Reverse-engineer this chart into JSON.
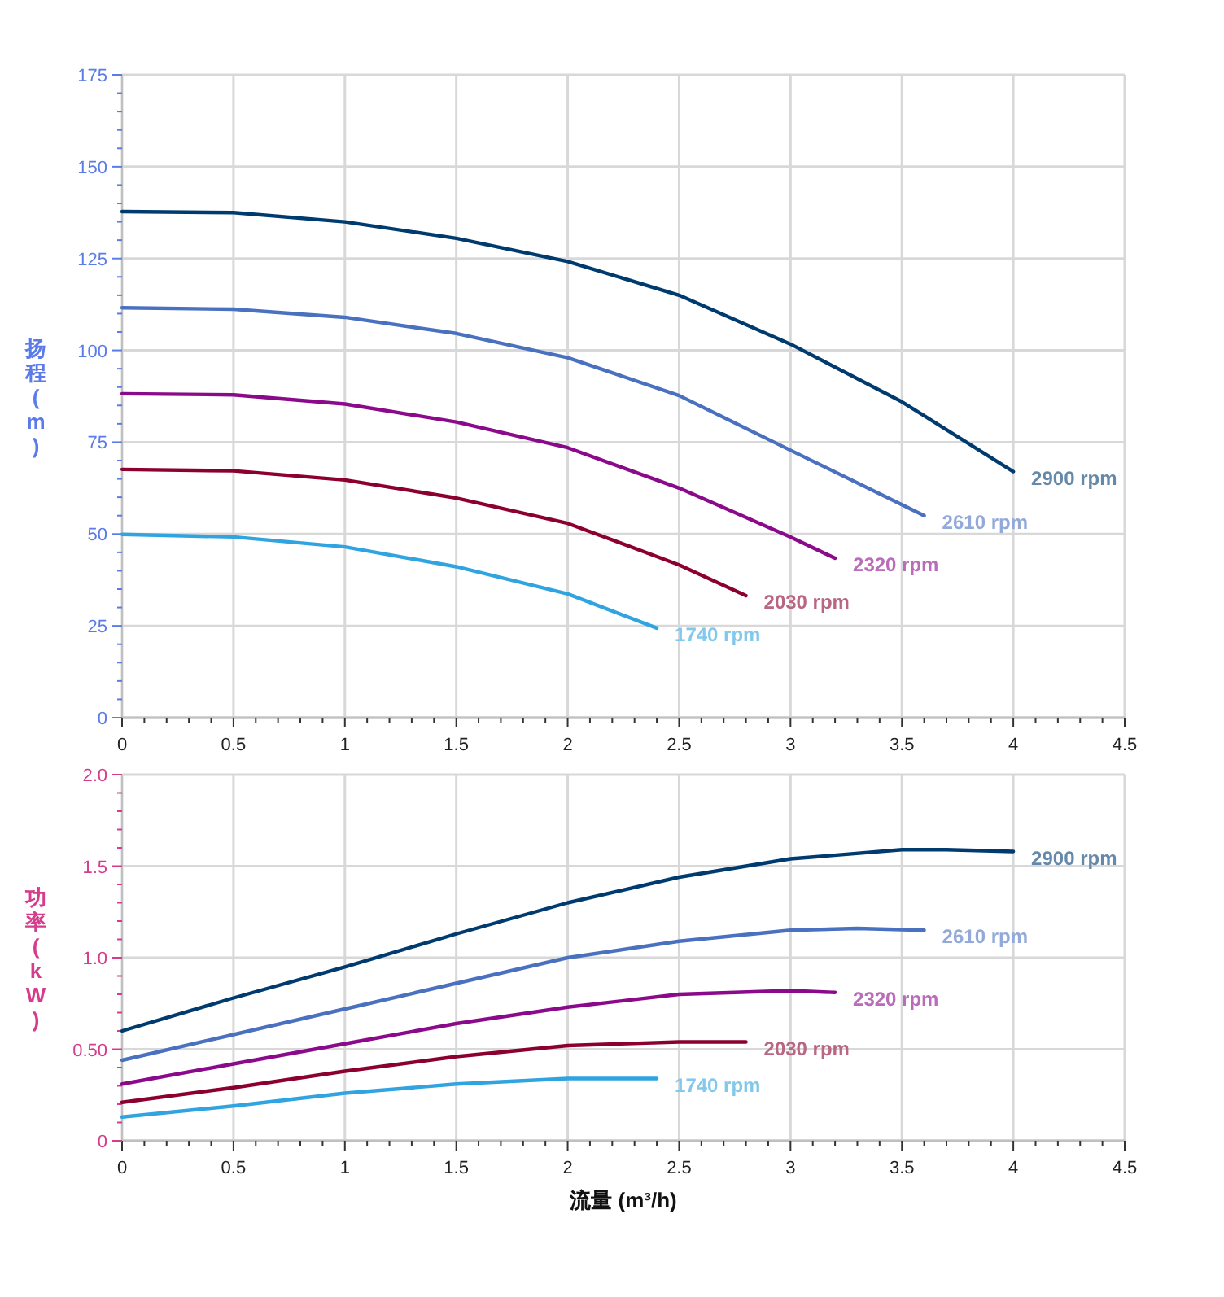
{
  "chart_data": [
    {
      "type": "line",
      "ylabel": "扬程 (m)",
      "xlim": [
        0,
        4.5
      ],
      "xticks": [
        0,
        0.5,
        1,
        1.5,
        2,
        2.5,
        3,
        3.5,
        4,
        4.5
      ],
      "ylim": [
        0,
        175
      ],
      "yticks": [
        0,
        25,
        50,
        75,
        100,
        125,
        150,
        175
      ],
      "grid": true,
      "series": [
        {
          "name": "2900 rpm",
          "color": "#003b6f",
          "x": [
            0,
            0.5,
            1,
            1.5,
            2,
            2.5,
            3,
            3.5,
            4
          ],
          "values": [
            137.8,
            137.5,
            135,
            130.5,
            124.2,
            115,
            101.7,
            86,
            67
          ]
        },
        {
          "name": "2610 rpm",
          "color": "#4a70c0",
          "x": [
            0,
            0.5,
            1,
            1.5,
            2,
            2.5,
            3,
            3.5,
            3.6
          ],
          "values": [
            111.6,
            111.2,
            109,
            104.6,
            98,
            87.7,
            72.8,
            58,
            55
          ]
        },
        {
          "name": "2320 rpm",
          "color": "#8b0a8b",
          "x": [
            0,
            0.5,
            1,
            1.5,
            2,
            2.5,
            3,
            3.2
          ],
          "values": [
            88.2,
            87.9,
            85.4,
            80.5,
            73.5,
            62.5,
            49.2,
            43.4
          ]
        },
        {
          "name": "2030 rpm",
          "color": "#8b0030",
          "x": [
            0,
            0.5,
            1,
            1.5,
            2,
            2.5,
            2.8
          ],
          "values": [
            67.6,
            67.2,
            64.7,
            59.8,
            52.9,
            41.6,
            33.2
          ]
        },
        {
          "name": "1740 rpm",
          "color": "#2fa4e0",
          "x": [
            0,
            0.5,
            1,
            1.5,
            2,
            2.4
          ],
          "values": [
            49.9,
            49.2,
            46.5,
            41.1,
            33.7,
            24.4
          ]
        }
      ]
    },
    {
      "type": "line",
      "xlabel": "流量 (m³/h)",
      "ylabel": "功率 (kW)",
      "xlim": [
        0,
        4.5
      ],
      "xticks": [
        0,
        0.5,
        1,
        1.5,
        2,
        2.5,
        3,
        3.5,
        4,
        4.5
      ],
      "ylim": [
        0,
        2
      ],
      "yticks": [
        0,
        {
          "value": 0.5,
          "label": "0.50"
        },
        {
          "value": 1,
          "label": "1.0"
        },
        1.5,
        {
          "value": 2,
          "label": "2.0"
        }
      ],
      "grid": true,
      "series": [
        {
          "name": "2900 rpm",
          "color": "#003b6f",
          "x": [
            0,
            0.5,
            1,
            1.5,
            2,
            2.5,
            3,
            3.5,
            3.7,
            4
          ],
          "values": [
            0.6,
            0.78,
            0.95,
            1.13,
            1.3,
            1.44,
            1.54,
            1.59,
            1.59,
            1.58
          ]
        },
        {
          "name": "2610 rpm",
          "color": "#4a70c0",
          "x": [
            0,
            0.5,
            1,
            1.5,
            2,
            2.5,
            3,
            3.3,
            3.6
          ],
          "values": [
            0.44,
            0.58,
            0.72,
            0.86,
            1.0,
            1.09,
            1.15,
            1.16,
            1.15
          ]
        },
        {
          "name": "2320 rpm",
          "color": "#8b0a8b",
          "x": [
            0,
            0.5,
            1,
            1.5,
            2,
            2.5,
            3,
            3.2
          ],
          "values": [
            0.31,
            0.42,
            0.53,
            0.64,
            0.73,
            0.8,
            0.82,
            0.81
          ]
        },
        {
          "name": "2030 rpm",
          "color": "#8b0030",
          "x": [
            0,
            0.5,
            1,
            1.5,
            2,
            2.5,
            2.8
          ],
          "values": [
            0.21,
            0.29,
            0.38,
            0.46,
            0.52,
            0.54,
            0.54
          ]
        },
        {
          "name": "1740 rpm",
          "color": "#2fa4e0",
          "x": [
            0,
            0.5,
            1,
            1.5,
            2,
            2.4
          ],
          "values": [
            0.13,
            0.19,
            0.26,
            0.31,
            0.34,
            0.34
          ]
        }
      ]
    }
  ]
}
